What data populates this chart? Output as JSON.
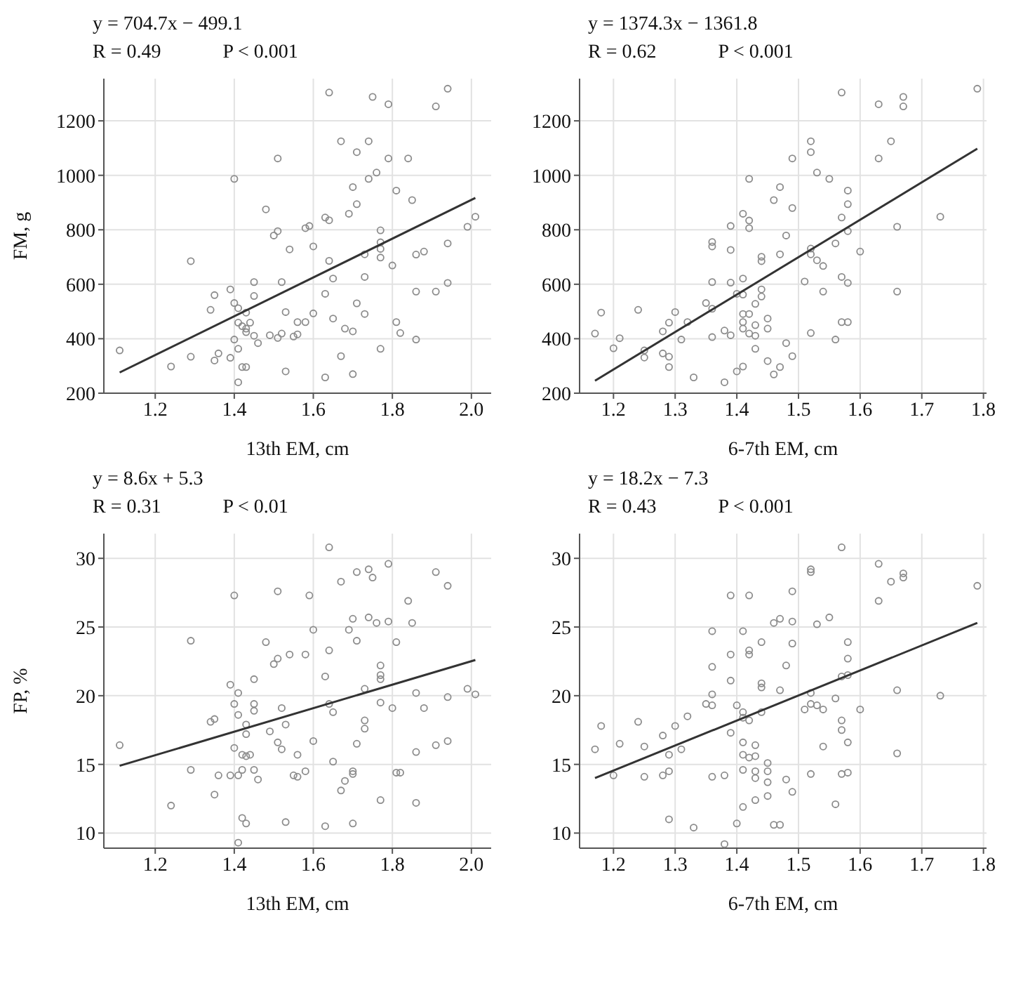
{
  "chart_data": [
    {
      "type": "scatter",
      "annotations": [
        "y = 704.7x − 499.1",
        "R = 0.49",
        "P < 0.001"
      ],
      "xlabel": "13th EM, cm",
      "ylabel": "FM, g",
      "xlim": [
        1.07,
        2.05
      ],
      "ylim": [
        200,
        1355
      ],
      "xticks": [
        1.2,
        1.4,
        1.6,
        1.8,
        {
          "value": 2,
          "label": "2.0"
        }
      ],
      "yticks": [
        200,
        400,
        600,
        800,
        1000,
        1200
      ],
      "grid": true,
      "marker": "circle",
      "series": [
        {
          "type": "scatter",
          "color": "#8c8c8c",
          "x": [
            1.11,
            1.24,
            1.29,
            1.29,
            1.34,
            1.35,
            1.35,
            1.36,
            1.39,
            1.39,
            1.4,
            1.4,
            1.4,
            1.41,
            1.41,
            1.41,
            1.41,
            1.42,
            1.42,
            1.43,
            1.43,
            1.43,
            1.43,
            1.44,
            1.45,
            1.45,
            1.45,
            1.46,
            1.48,
            1.49,
            1.5,
            1.51,
            1.51,
            1.51,
            1.52,
            1.52,
            1.53,
            1.53,
            1.54,
            1.55,
            1.56,
            1.56,
            1.58,
            1.58,
            1.59,
            1.6,
            1.6,
            1.63,
            1.64,
            1.63,
            1.63,
            1.64,
            1.64,
            1.65,
            1.65,
            1.67,
            1.67,
            1.68,
            1.69,
            1.7,
            1.7,
            1.7,
            1.71,
            1.71,
            1.71,
            1.73,
            1.73,
            1.73,
            1.74,
            1.74,
            1.75,
            1.76,
            1.77,
            1.77,
            1.77,
            1.77,
            1.77,
            1.79,
            1.79,
            1.8,
            1.81,
            1.81,
            1.82,
            1.84,
            1.85,
            1.86,
            1.86,
            1.86,
            1.88,
            1.91,
            1.91,
            1.94,
            1.94,
            1.94,
            1.99,
            2.01
          ],
          "values": [
            357,
            298,
            685,
            334,
            506,
            560,
            320,
            346,
            330,
            581,
            987,
            531,
            397,
            512,
            459,
            363,
            240,
            446,
            296,
            296,
            437,
            424,
            496,
            459,
            608,
            557,
            411,
            384,
            875,
            413,
            779,
            795,
            1062,
            403,
            608,
            419,
            498,
            280,
            728,
            408,
            461,
            416,
            806,
            461,
            814,
            739,
            493,
            845,
            835,
            565,
            258,
            686,
            1304,
            621,
            474,
            1125,
            336,
            437,
            859,
            427,
            270,
            957,
            1085,
            894,
            530,
            710,
            627,
            491,
            1125,
            987,
            1288,
            1010,
            798,
            754,
            730,
            698,
            363,
            1261,
            1062,
            669,
            944,
            461,
            421,
            1062,
            909,
            709,
            573,
            397,
            720,
            1253,
            573,
            1318,
            750,
            605,
            811,
            848
          ]
        },
        {
          "type": "line",
          "color": "#333333",
          "x": [
            1.11,
            2.01
          ],
          "values": [
            276,
            917
          ],
          "marker": "none"
        }
      ]
    },
    {
      "type": "scatter",
      "annotations": [
        "y = 1374.3x − 1361.8",
        "R = 0.62",
        "P < 0.001"
      ],
      "xlabel": "6-7th EM, cm",
      "xlim": [
        1.145,
        1.805
      ],
      "ylim": [
        200,
        1355
      ],
      "xticks": [
        1.2,
        1.3,
        1.4,
        1.5,
        1.6,
        1.7,
        1.8
      ],
      "yticks": [
        200,
        400,
        600,
        800,
        1000,
        1200
      ],
      "grid": true,
      "marker": "circle",
      "series": [
        {
          "type": "scatter",
          "color": "#8c8c8c",
          "x": [
            1.17,
            1.18,
            1.2,
            1.21,
            1.24,
            1.25,
            1.25,
            1.28,
            1.28,
            1.29,
            1.29,
            1.29,
            1.3,
            1.31,
            1.32,
            1.33,
            1.35,
            1.36,
            1.36,
            1.36,
            1.36,
            1.36,
            1.38,
            1.38,
            1.39,
            1.39,
            1.39,
            1.39,
            1.4,
            1.4,
            1.41,
            1.41,
            1.41,
            1.41,
            1.41,
            1.41,
            1.41,
            1.42,
            1.42,
            1.42,
            1.42,
            1.42,
            1.43,
            1.43,
            1.43,
            1.43,
            1.44,
            1.44,
            1.44,
            1.44,
            1.45,
            1.45,
            1.45,
            1.46,
            1.46,
            1.47,
            1.47,
            1.47,
            1.48,
            1.48,
            1.49,
            1.49,
            1.49,
            1.51,
            1.52,
            1.52,
            1.52,
            1.52,
            1.52,
            1.53,
            1.53,
            1.54,
            1.54,
            1.55,
            1.56,
            1.56,
            1.57,
            1.57,
            1.57,
            1.57,
            1.58,
            1.58,
            1.58,
            1.58,
            1.58,
            1.6,
            1.63,
            1.63,
            1.65,
            1.66,
            1.66,
            1.67,
            1.67,
            1.73,
            1.79
          ],
          "values": [
            419,
            496,
            365,
            402,
            506,
            357,
            331,
            427,
            346,
            459,
            334,
            296,
            498,
            397,
            461,
            258,
            531,
            510,
            406,
            755,
            739,
            608,
            430,
            240,
            413,
            814,
            726,
            606,
            280,
            565,
            859,
            621,
            562,
            491,
            461,
            437,
            298,
            987,
            834,
            806,
            491,
            419,
            528,
            450,
            411,
            363,
            701,
            685,
            581,
            555,
            474,
            437,
            318,
            909,
            269,
            957,
            710,
            296,
            779,
            384,
            1062,
            880,
            336,
            610,
            1125,
            1085,
            731,
            710,
            421,
            1010,
            688,
            667,
            573,
            987,
            750,
            397,
            1304,
            845,
            627,
            461,
            944,
            894,
            795,
            605,
            461,
            720,
            1261,
            1062,
            1125,
            811,
            573,
            1288,
            1253,
            848,
            1318
          ]
        },
        {
          "type": "line",
          "color": "#333333",
          "x": [
            1.17,
            1.79
          ],
          "values": [
            246,
            1098
          ],
          "marker": "none"
        }
      ]
    },
    {
      "type": "scatter",
      "annotations": [
        "y = 8.6x + 5.3",
        "R = 0.31",
        "P < 0.01"
      ],
      "xlabel": "13th EM, cm",
      "ylabel": "FP, %",
      "xlim": [
        1.07,
        2.05
      ],
      "ylim": [
        8.9,
        31.8
      ],
      "xticks": [
        1.2,
        1.4,
        1.6,
        1.8,
        {
          "value": 2,
          "label": "2.0"
        }
      ],
      "yticks": [
        10,
        15,
        20,
        25,
        30
      ],
      "grid": true,
      "marker": "circle",
      "series": [
        {
          "type": "scatter",
          "color": "#8c8c8c",
          "x": [
            1.11,
            1.24,
            1.29,
            1.29,
            1.34,
            1.35,
            1.35,
            1.36,
            1.39,
            1.39,
            1.4,
            1.4,
            1.4,
            1.41,
            1.41,
            1.41,
            1.41,
            1.42,
            1.42,
            1.42,
            1.43,
            1.43,
            1.43,
            1.43,
            1.44,
            1.45,
            1.45,
            1.45,
            1.45,
            1.46,
            1.48,
            1.49,
            1.5,
            1.51,
            1.51,
            1.51,
            1.52,
            1.52,
            1.53,
            1.53,
            1.54,
            1.55,
            1.56,
            1.56,
            1.58,
            1.58,
            1.59,
            1.6,
            1.6,
            1.63,
            1.63,
            1.64,
            1.64,
            1.64,
            1.65,
            1.65,
            1.67,
            1.67,
            1.68,
            1.69,
            1.7,
            1.7,
            1.7,
            1.7,
            1.71,
            1.71,
            1.71,
            1.73,
            1.73,
            1.73,
            1.74,
            1.74,
            1.75,
            1.76,
            1.77,
            1.77,
            1.77,
            1.77,
            1.77,
            1.79,
            1.79,
            1.8,
            1.81,
            1.81,
            1.82,
            1.84,
            1.85,
            1.86,
            1.86,
            1.86,
            1.88,
            1.91,
            1.91,
            1.94,
            1.94,
            1.94,
            1.99,
            2.01
          ],
          "values": [
            16.4,
            12.0,
            24.0,
            14.6,
            18.1,
            18.3,
            12.8,
            14.2,
            20.8,
            14.2,
            27.3,
            16.2,
            19.4,
            20.2,
            18.6,
            14.2,
            9.3,
            15.7,
            14.6,
            11.1,
            15.6,
            17.9,
            17.2,
            10.7,
            15.7,
            21.2,
            19.4,
            18.9,
            14.6,
            13.9,
            23.9,
            17.4,
            22.3,
            22.7,
            27.6,
            16.6,
            19.1,
            16.1,
            10.8,
            17.9,
            23.0,
            14.2,
            14.1,
            15.7,
            23.0,
            14.5,
            27.3,
            24.8,
            16.7,
            21.4,
            10.5,
            19.4,
            30.8,
            23.3,
            18.8,
            15.2,
            28.3,
            13.1,
            13.8,
            24.8,
            25.6,
            14.5,
            14.3,
            10.7,
            29.0,
            24.0,
            16.5,
            20.5,
            18.2,
            17.6,
            29.2,
            25.7,
            28.6,
            25.3,
            22.2,
            21.5,
            21.2,
            19.5,
            12.4,
            29.6,
            25.4,
            19.1,
            23.9,
            14.4,
            14.4,
            26.9,
            25.3,
            20.2,
            15.9,
            12.2,
            19.1,
            29.0,
            16.4,
            28.0,
            19.9,
            16.7,
            20.5,
            20.1
          ]
        },
        {
          "type": "line",
          "color": "#333333",
          "x": [
            1.11,
            2.01
          ],
          "values": [
            14.9,
            22.6
          ],
          "marker": "none"
        }
      ]
    },
    {
      "type": "scatter",
      "annotations": [
        "y = 18.2x − 7.3",
        "R = 0.43",
        "P < 0.001"
      ],
      "xlabel": "6-7th EM, cm",
      "xlim": [
        1.145,
        1.805
      ],
      "ylim": [
        8.9,
        31.8
      ],
      "xticks": [
        1.2,
        1.3,
        1.4,
        1.5,
        1.6,
        1.7,
        1.8
      ],
      "yticks": [
        10,
        15,
        20,
        25,
        30
      ],
      "grid": true,
      "marker": "circle",
      "series": [
        {
          "type": "scatter",
          "color": "#8c8c8c",
          "x": [
            1.17,
            1.18,
            1.2,
            1.21,
            1.24,
            1.25,
            1.25,
            1.28,
            1.28,
            1.29,
            1.29,
            1.29,
            1.3,
            1.31,
            1.32,
            1.33,
            1.35,
            1.36,
            1.36,
            1.36,
            1.36,
            1.36,
            1.38,
            1.38,
            1.39,
            1.39,
            1.39,
            1.39,
            1.4,
            1.4,
            1.41,
            1.41,
            1.41,
            1.41,
            1.41,
            1.41,
            1.41,
            1.42,
            1.42,
            1.42,
            1.42,
            1.42,
            1.43,
            1.43,
            1.43,
            1.43,
            1.43,
            1.44,
            1.44,
            1.44,
            1.44,
            1.45,
            1.45,
            1.45,
            1.45,
            1.46,
            1.46,
            1.47,
            1.47,
            1.47,
            1.48,
            1.48,
            1.49,
            1.49,
            1.49,
            1.49,
            1.51,
            1.52,
            1.52,
            1.52,
            1.52,
            1.52,
            1.53,
            1.53,
            1.54,
            1.54,
            1.55,
            1.56,
            1.56,
            1.57,
            1.57,
            1.57,
            1.57,
            1.57,
            1.58,
            1.58,
            1.58,
            1.58,
            1.58,
            1.6,
            1.63,
            1.63,
            1.65,
            1.66,
            1.66,
            1.67,
            1.67,
            1.73,
            1.79
          ],
          "values": [
            16.1,
            17.8,
            14.2,
            16.5,
            18.1,
            16.3,
            14.1,
            17.1,
            14.2,
            15.7,
            14.5,
            11.0,
            17.8,
            16.1,
            18.5,
            10.4,
            19.4,
            24.7,
            22.1,
            20.1,
            19.3,
            14.1,
            14.2,
            9.2,
            27.3,
            23.0,
            21.1,
            17.3,
            19.3,
            10.7,
            24.7,
            18.8,
            18.4,
            16.6,
            15.7,
            14.6,
            11.9,
            27.3,
            23.3,
            23.0,
            18.2,
            15.5,
            16.4,
            15.6,
            14.5,
            14.0,
            12.4,
            23.9,
            20.9,
            20.6,
            18.8,
            15.1,
            14.5,
            13.7,
            12.7,
            25.3,
            10.6,
            25.6,
            20.4,
            10.6,
            22.2,
            13.9,
            27.6,
            25.4,
            23.8,
            13.0,
            19.0,
            29.2,
            29.0,
            20.2,
            19.4,
            14.3,
            25.2,
            19.3,
            19.0,
            16.3,
            25.7,
            19.8,
            12.1,
            30.8,
            21.4,
            18.2,
            17.5,
            14.3,
            23.9,
            22.7,
            21.5,
            16.6,
            14.4,
            19.0,
            29.6,
            26.9,
            28.3,
            20.4,
            15.8,
            28.9,
            28.6,
            20.0,
            28.0
          ]
        },
        {
          "type": "line",
          "color": "#333333",
          "x": [
            1.17,
            1.79
          ],
          "values": [
            14.0,
            25.3
          ],
          "marker": "none"
        }
      ]
    }
  ]
}
